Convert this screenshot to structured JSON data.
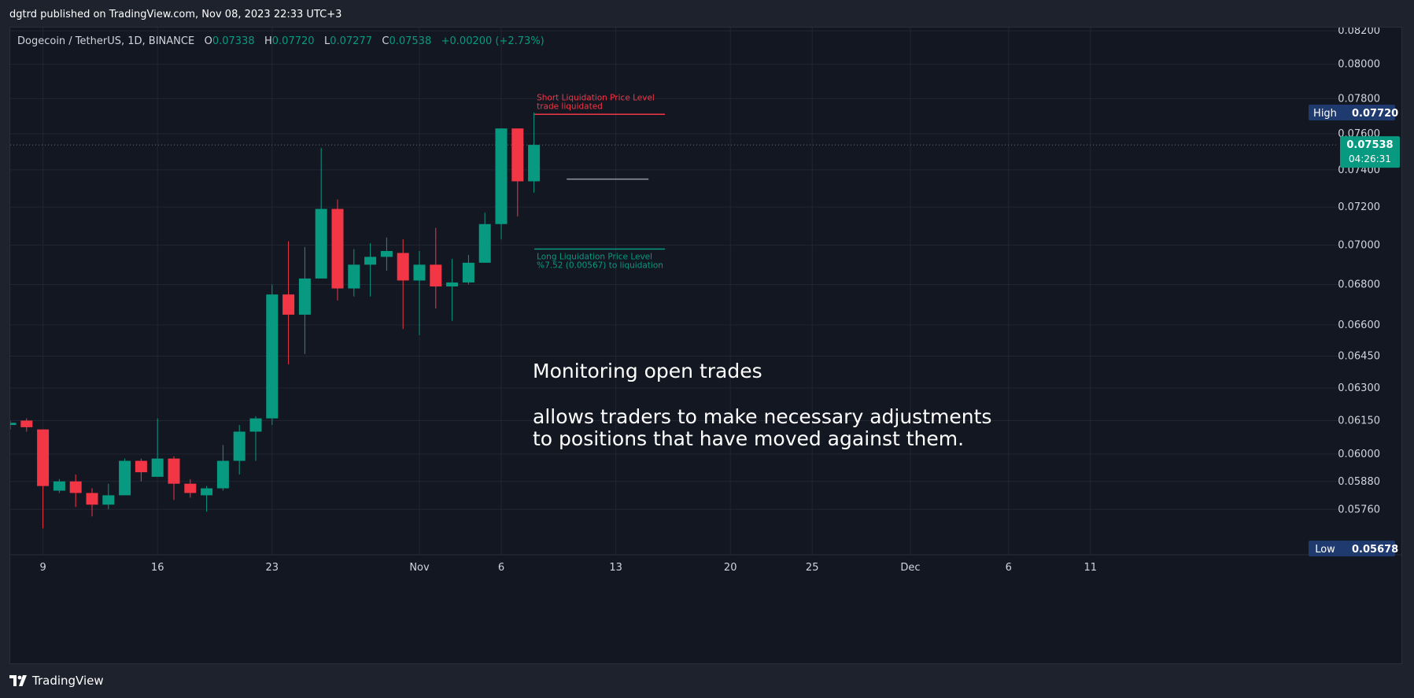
{
  "header": {
    "publisher_line": "dgtrd published on TradingView.com, Nov 08, 2023 22:33 UTC+3"
  },
  "legend": {
    "symbol": "Dogecoin / TetherUS, 1D, BINANCE",
    "o_label": "O",
    "o_value": "0.07338",
    "h_label": "H",
    "h_value": "0.07720",
    "l_label": "L",
    "l_value": "0.07277",
    "c_label": "C",
    "c_value": "0.07538",
    "change": "+0.00200 (+2.73%)"
  },
  "footer": {
    "brand": "TradingView"
  },
  "colors": {
    "up": "#089981",
    "down": "#f23645",
    "background": "#131722",
    "grid": "#222632",
    "text": "#d1d4dc",
    "badge_navy": "#1e3a6e"
  },
  "chart_data": {
    "type": "candlestick",
    "y_scale": "log",
    "ylim": [
      0.0557,
      0.0822
    ],
    "y_ticks": [
      "0.08200",
      "0.08000",
      "0.07800",
      "0.07600",
      "0.07400",
      "0.07200",
      "0.07000",
      "0.06800",
      "0.06600",
      "0.06450",
      "0.06300",
      "0.06150",
      "0.06000",
      "0.05880",
      "0.05760"
    ],
    "x_ticks": [
      {
        "label": "9",
        "index": 2
      },
      {
        "label": "16",
        "index": 9
      },
      {
        "label": "23",
        "index": 16
      },
      {
        "label": "Nov",
        "index": 25
      },
      {
        "label": "6",
        "index": 30
      },
      {
        "label": "13",
        "index": 37
      },
      {
        "label": "20",
        "index": 44
      },
      {
        "label": "25",
        "index": 49
      },
      {
        "label": "Dec",
        "index": 55
      },
      {
        "label": "6",
        "index": 61
      },
      {
        "label": "11",
        "index": 66
      }
    ],
    "candles": [
      {
        "index": 0,
        "o": 0.0613,
        "h": 0.0615,
        "l": 0.0611,
        "c": 0.0614
      },
      {
        "index": 1,
        "o": 0.0615,
        "h": 0.0616,
        "l": 0.061,
        "c": 0.0612
      },
      {
        "index": 2,
        "o": 0.0611,
        "h": 0.0611,
        "l": 0.0568,
        "c": 0.0586
      },
      {
        "index": 3,
        "o": 0.0584,
        "h": 0.0589,
        "l": 0.0583,
        "c": 0.0588
      },
      {
        "index": 4,
        "o": 0.0588,
        "h": 0.0591,
        "l": 0.0577,
        "c": 0.0583
      },
      {
        "index": 5,
        "o": 0.0583,
        "h": 0.0585,
        "l": 0.0573,
        "c": 0.0578
      },
      {
        "index": 6,
        "o": 0.0578,
        "h": 0.0587,
        "l": 0.0576,
        "c": 0.0582
      },
      {
        "index": 7,
        "o": 0.0582,
        "h": 0.0598,
        "l": 0.0582,
        "c": 0.0597
      },
      {
        "index": 8,
        "o": 0.0597,
        "h": 0.0598,
        "l": 0.0588,
        "c": 0.0592
      },
      {
        "index": 9,
        "o": 0.059,
        "h": 0.0616,
        "l": 0.059,
        "c": 0.0598
      },
      {
        "index": 10,
        "o": 0.0598,
        "h": 0.0599,
        "l": 0.058,
        "c": 0.0587
      },
      {
        "index": 11,
        "o": 0.0587,
        "h": 0.0589,
        "l": 0.0581,
        "c": 0.0583
      },
      {
        "index": 12,
        "o": 0.0582,
        "h": 0.0586,
        "l": 0.0575,
        "c": 0.0585
      },
      {
        "index": 13,
        "o": 0.0585,
        "h": 0.0604,
        "l": 0.0584,
        "c": 0.0597
      },
      {
        "index": 14,
        "o": 0.0597,
        "h": 0.0613,
        "l": 0.0591,
        "c": 0.061
      },
      {
        "index": 15,
        "o": 0.061,
        "h": 0.0617,
        "l": 0.0597,
        "c": 0.0616
      },
      {
        "index": 16,
        "o": 0.0616,
        "h": 0.068,
        "l": 0.0613,
        "c": 0.0675
      },
      {
        "index": 17,
        "o": 0.0675,
        "h": 0.0702,
        "l": 0.0641,
        "c": 0.0665
      },
      {
        "index": 18,
        "o": 0.0665,
        "h": 0.0699,
        "l": 0.0646,
        "c": 0.0683
      },
      {
        "index": 19,
        "o": 0.0683,
        "h": 0.0752,
        "l": 0.0683,
        "c": 0.0719
      },
      {
        "index": 20,
        "o": 0.0719,
        "h": 0.0724,
        "l": 0.0672,
        "c": 0.0678
      },
      {
        "index": 21,
        "o": 0.0678,
        "h": 0.0698,
        "l": 0.0674,
        "c": 0.069
      },
      {
        "index": 22,
        "o": 0.069,
        "h": 0.0701,
        "l": 0.0674,
        "c": 0.0694
      },
      {
        "index": 23,
        "o": 0.0694,
        "h": 0.0704,
        "l": 0.0687,
        "c": 0.0697
      },
      {
        "index": 24,
        "o": 0.0696,
        "h": 0.0703,
        "l": 0.0658,
        "c": 0.0682
      },
      {
        "index": 25,
        "o": 0.0682,
        "h": 0.0697,
        "l": 0.0655,
        "c": 0.069
      },
      {
        "index": 26,
        "o": 0.069,
        "h": 0.0709,
        "l": 0.0668,
        "c": 0.0679
      },
      {
        "index": 27,
        "o": 0.0679,
        "h": 0.0693,
        "l": 0.0662,
        "c": 0.0681
      },
      {
        "index": 28,
        "o": 0.0681,
        "h": 0.0695,
        "l": 0.068,
        "c": 0.0691
      },
      {
        "index": 29,
        "o": 0.0691,
        "h": 0.0717,
        "l": 0.0691,
        "c": 0.0711
      },
      {
        "index": 30,
        "o": 0.0711,
        "h": 0.0763,
        "l": 0.0703,
        "c": 0.0763
      },
      {
        "index": 31,
        "o": 0.0763,
        "h": 0.0763,
        "l": 0.0715,
        "c": 0.07338
      },
      {
        "index": 32,
        "o": 0.07338,
        "h": 0.0772,
        "l": 0.07277,
        "c": 0.07538
      }
    ],
    "last_price": {
      "value": "0.07538",
      "countdown": "04:26:31"
    },
    "high_label": {
      "text": "High",
      "value": "0.07720"
    },
    "low_label": {
      "text": "Low",
      "value": "0.05678"
    },
    "short_liquidation": {
      "price": 0.0771,
      "line1": "Short Liquidation Price Level",
      "line2": "trade liquidated"
    },
    "long_liquidation": {
      "price": 0.0698,
      "line1": "Long Liquidation Price Level",
      "line2": "%7.52 (0.00567) to liquidation"
    },
    "entry_line": {
      "price": 0.0735
    },
    "annotation": {
      "title": "Monitoring open trades",
      "line1": "allows traders to make necessary adjustments",
      "line2": " to positions that have moved against them."
    }
  }
}
